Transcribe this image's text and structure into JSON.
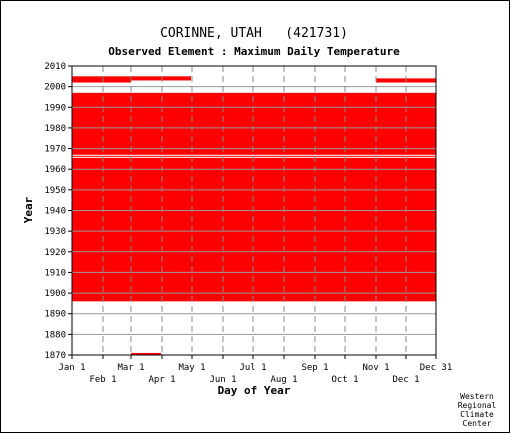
{
  "chart_data": {
    "type": "heatmap",
    "title": "CORINNE, UTAH   (421731)",
    "subtitle": "Observed Element : Maximum Daily Temperature",
    "xlabel": "Day of Year",
    "ylabel": "Year",
    "xlim": [
      1,
      365
    ],
    "ylim": [
      1870,
      2010
    ],
    "grid": true,
    "color": "#ff0000",
    "y_ticks": [
      1870,
      1880,
      1890,
      1900,
      1910,
      1920,
      1930,
      1940,
      1950,
      1960,
      1970,
      1980,
      1990,
      2000,
      2010
    ],
    "x_ticks_top": [
      {
        "label": "Jan 1",
        "day": 1
      },
      {
        "label": "Mar 1",
        "day": 60
      },
      {
        "label": "May 1",
        "day": 121
      },
      {
        "label": "Jul 1",
        "day": 182
      },
      {
        "label": "Sep 1",
        "day": 244
      },
      {
        "label": "Nov 1",
        "day": 305
      },
      {
        "label": "Dec 31",
        "day": 365
      }
    ],
    "x_ticks_bottom": [
      {
        "label": "Feb 1",
        "day": 32
      },
      {
        "label": "Apr 1",
        "day": 91
      },
      {
        "label": "Jun 1",
        "day": 152
      },
      {
        "label": "Aug 1",
        "day": 213
      },
      {
        "label": "Oct 1",
        "day": 274
      },
      {
        "label": "Dec 1",
        "day": 335
      }
    ],
    "observed_blocks": [
      {
        "start_year": 1896,
        "end_year": 1996,
        "start_day": 1,
        "end_day": 365
      },
      {
        "start_year": 1870,
        "end_year": 1870,
        "start_day": 60,
        "end_day": 90
      },
      {
        "start_year": 2002,
        "end_year": 2004,
        "start_day": 1,
        "end_day": 60
      },
      {
        "start_year": 2003,
        "end_year": 2004,
        "start_day": 60,
        "end_day": 120
      },
      {
        "start_year": 2002,
        "end_year": 2003,
        "start_day": 305,
        "end_day": 365
      }
    ],
    "missing_years": [
      1965,
      1966
    ]
  },
  "credit": [
    "Western",
    "Regional",
    "Climate",
    "Center"
  ]
}
